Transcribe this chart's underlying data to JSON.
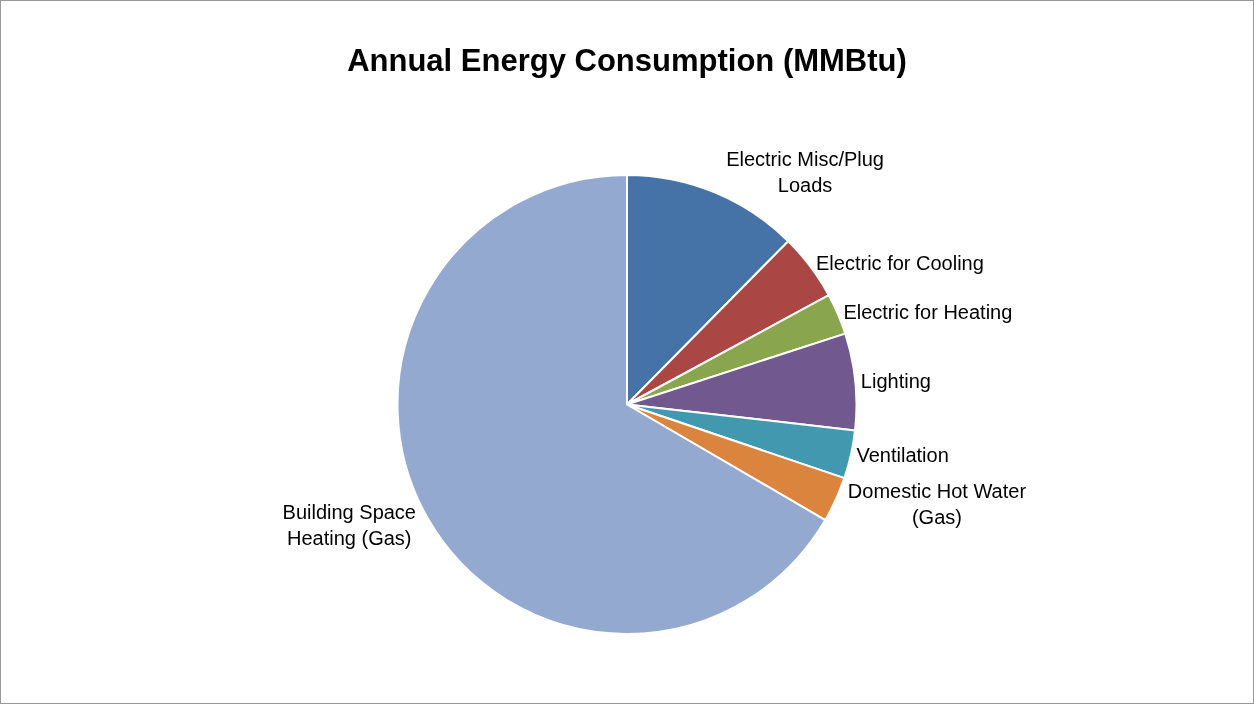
{
  "chart_data": {
    "type": "pie",
    "title": "Annual Energy Consumption (MMBtu)",
    "categories": [
      "Electric Misc/Plug Loads",
      "Electric for Cooling",
      "Electric for Heating",
      "Lighting",
      "Ventilation",
      "Domestic Hot Water (Gas)",
      "Building Space Heating (Gas)"
    ],
    "values": [
      12.4,
      4.7,
      2.9,
      6.8,
      3.4,
      3.2,
      66.6
    ],
    "colors": [
      "#4572a7",
      "#aa4643",
      "#89a54e",
      "#71588f",
      "#4198af",
      "#db843d",
      "#93a9cf"
    ],
    "legend": false
  }
}
